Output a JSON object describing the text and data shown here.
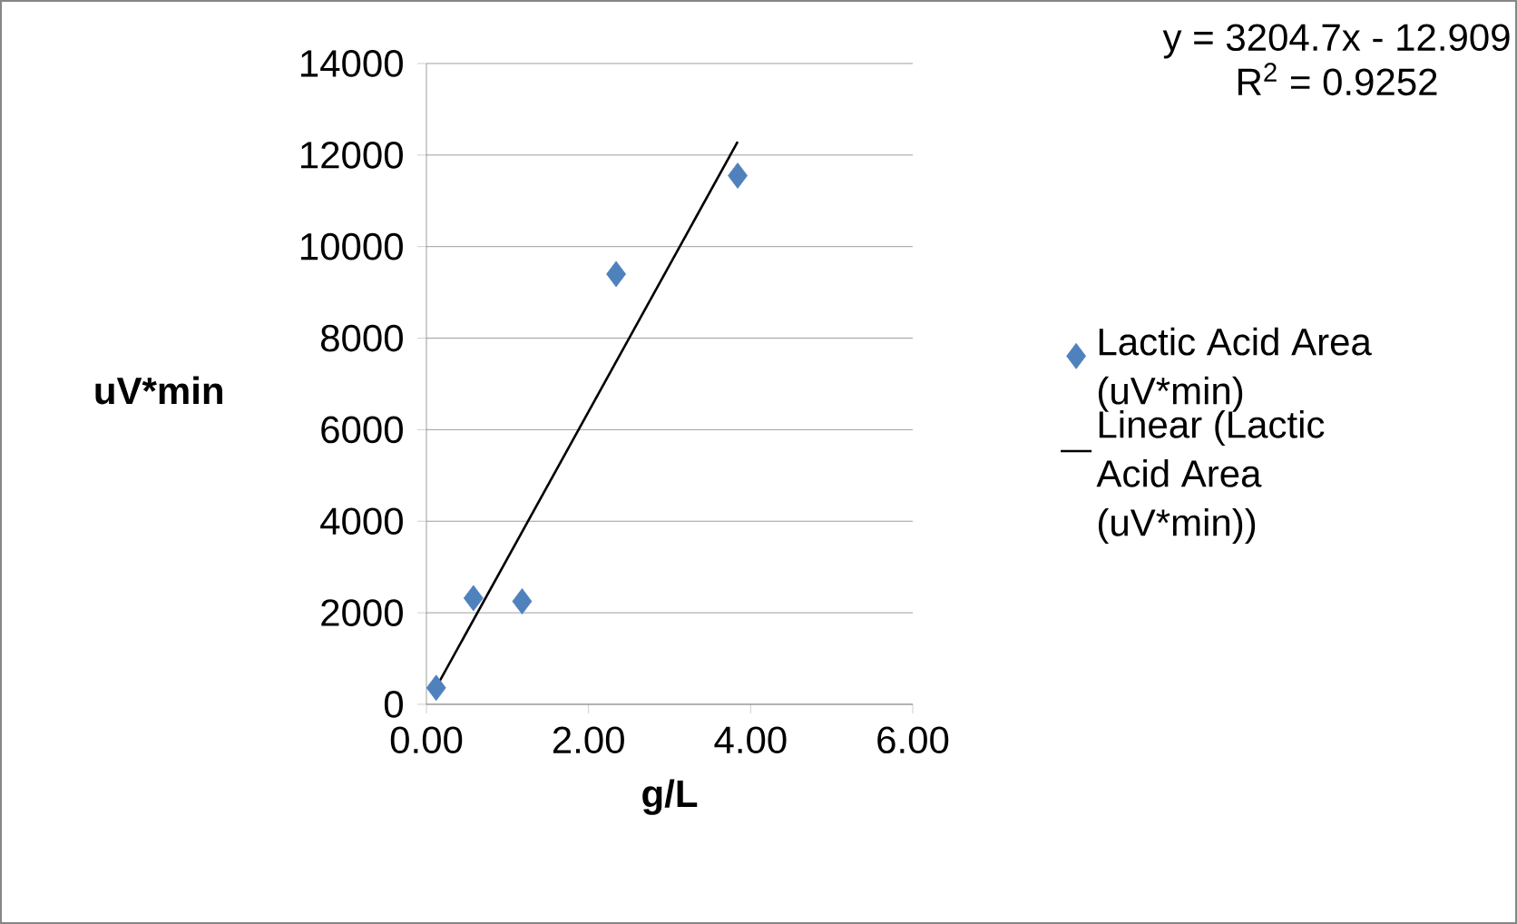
{
  "chart_data": {
    "type": "scatter",
    "xlabel": "g/L",
    "ylabel": "uV*min",
    "xlim": [
      0,
      6
    ],
    "ylim": [
      0,
      14000
    ],
    "xticks": [
      {
        "value": 0,
        "label": "0.00"
      },
      {
        "value": 2,
        "label": "2.00"
      },
      {
        "value": 4,
        "label": "4.00"
      },
      {
        "value": 6,
        "label": "6.00"
      }
    ],
    "yticks": [
      0,
      2000,
      4000,
      6000,
      8000,
      10000,
      12000,
      14000
    ],
    "grid": "y",
    "legend": "right",
    "annotations": [
      "y = 3204.7x - 12.909",
      "R$^{2}$ = 0.9252"
    ],
    "series": [
      {
        "name": "Lactic Acid Area (uV*min)",
        "color": "#4f81bd",
        "marker": "diamond",
        "x": [
          0.12,
          0.58,
          1.18,
          2.34,
          3.84
        ],
        "values": [
          360,
          2320,
          2250,
          9400,
          11550
        ]
      },
      {
        "type": "line",
        "name": "Linear (Lactic Acid Area (uV*min))",
        "color": "#000000",
        "marker": "none",
        "x": [
          0.12,
          3.84
        ],
        "values": [
          370,
          12290
        ]
      }
    ]
  }
}
